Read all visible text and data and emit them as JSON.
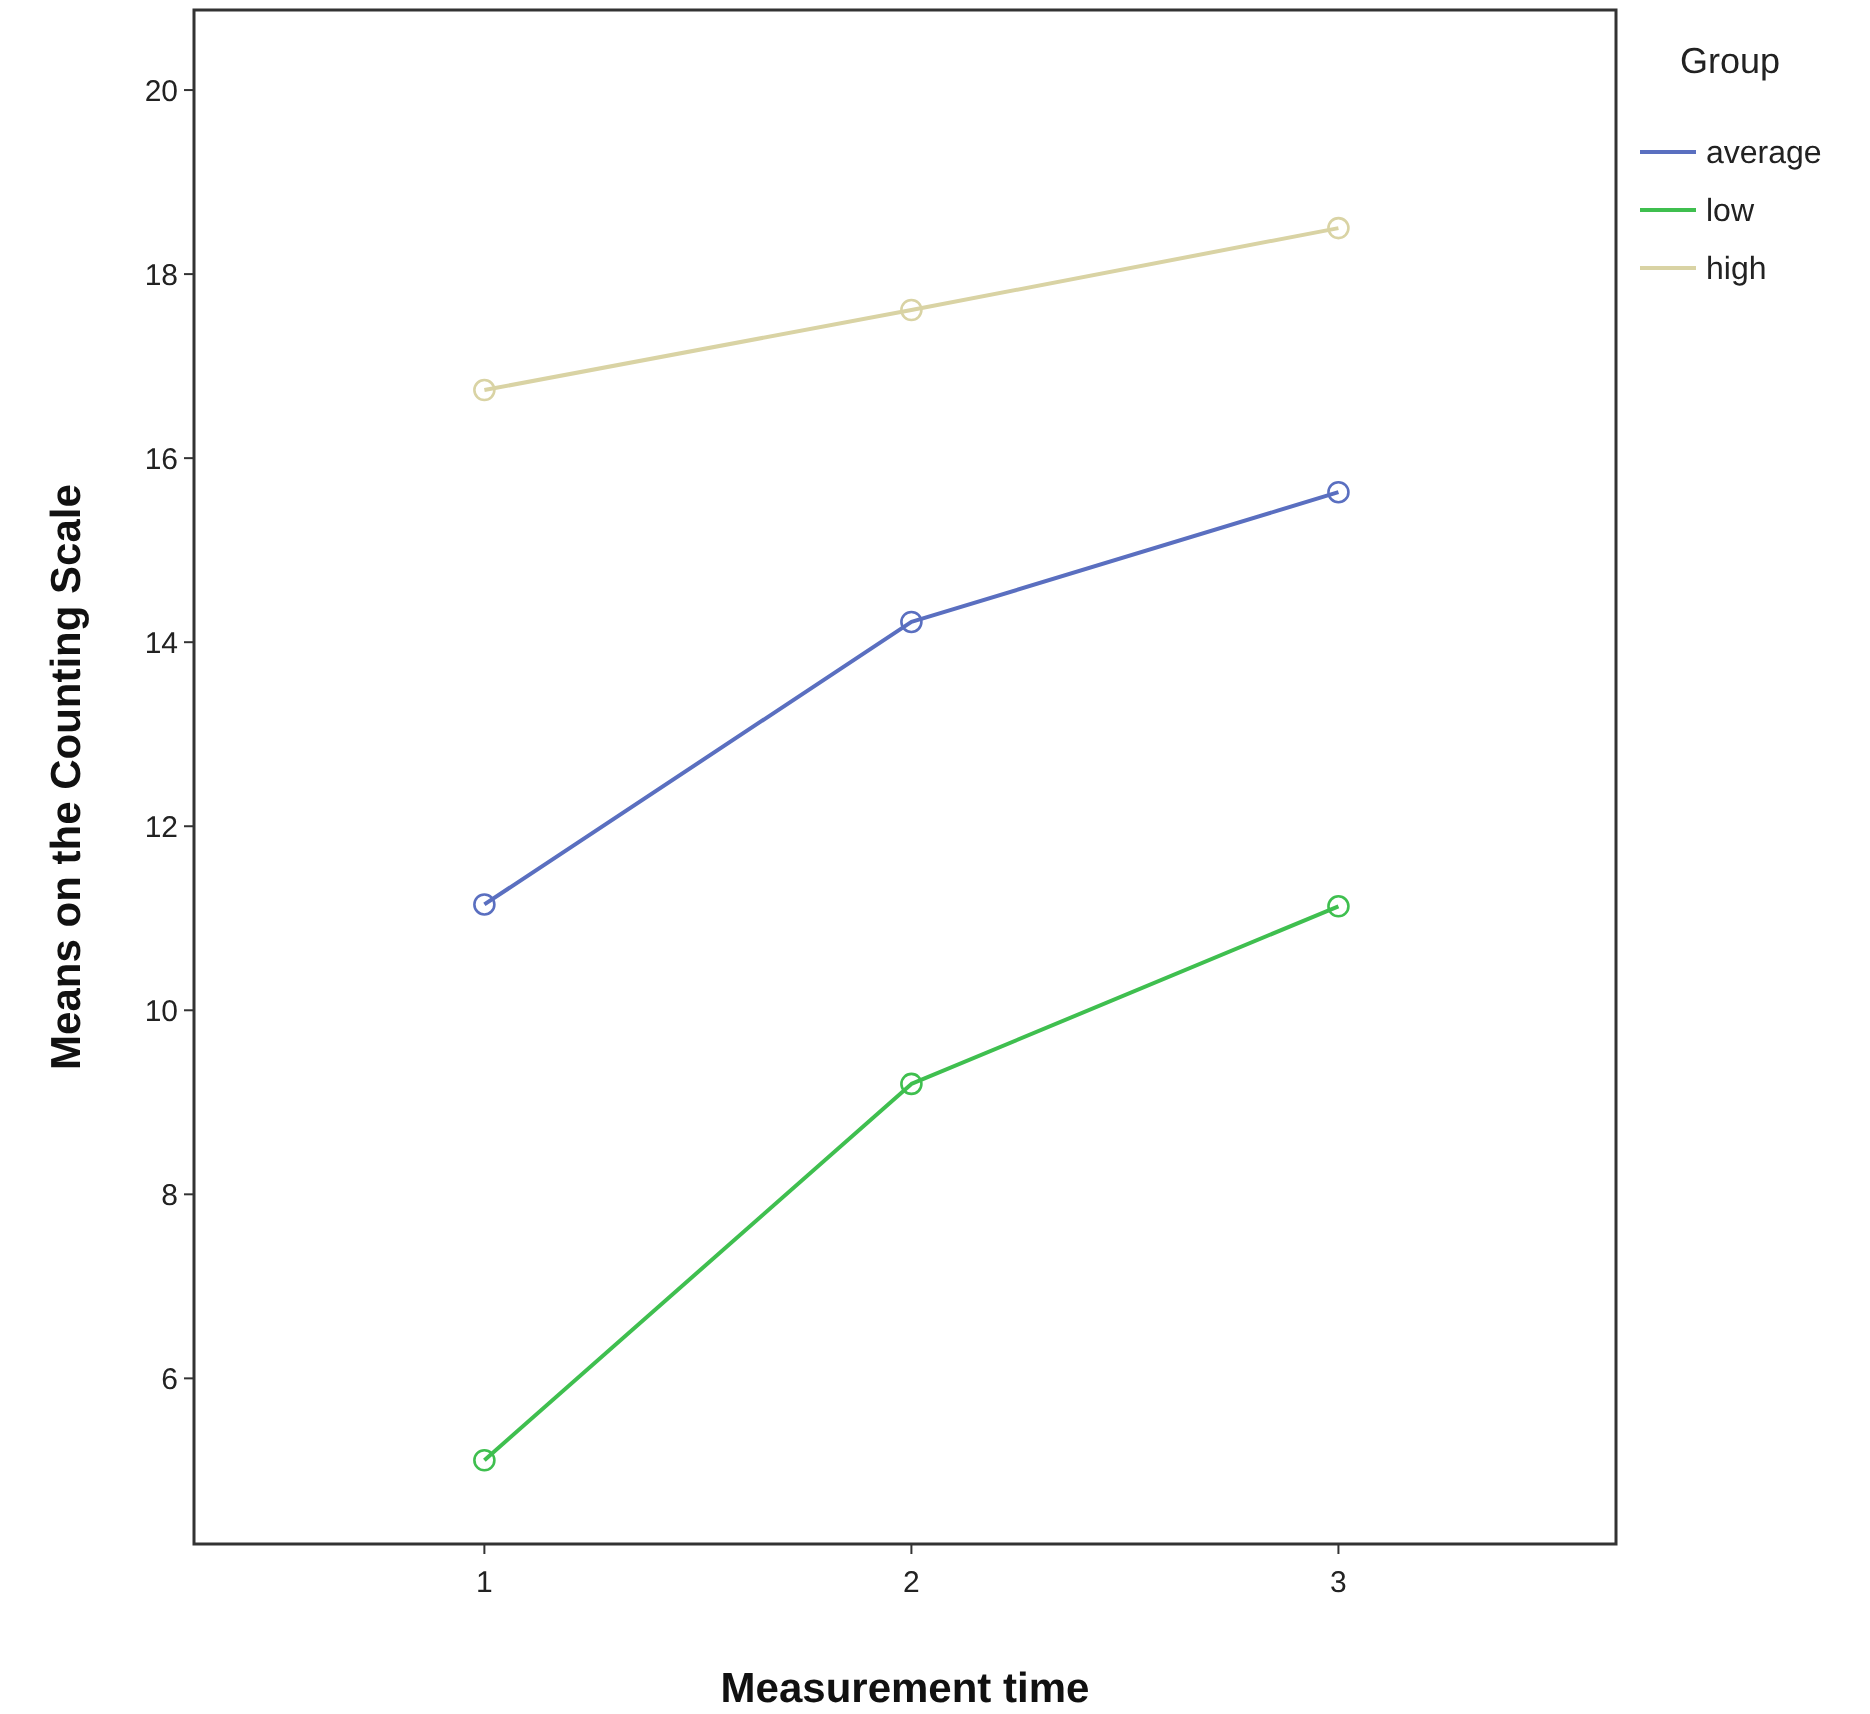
{
  "chart_data": {
    "type": "line",
    "xlabel": "Measurement time",
    "ylabel": "Means on the Counting Scale",
    "legend_title": "Group",
    "x": [
      1,
      2,
      3
    ],
    "xlim": [
      0.32,
      3.65
    ],
    "xticks": [
      1,
      2,
      3
    ],
    "ylim": [
      4.2,
      20.87
    ],
    "yticks": [
      6,
      8,
      10,
      12,
      14,
      16,
      18,
      20
    ],
    "grid": false,
    "legend": "right",
    "marker": "circle",
    "line_style": "solid",
    "series": [
      {
        "name": "average",
        "color": "#5a6fc0",
        "values": [
          11.15,
          14.22,
          15.63
        ]
      },
      {
        "name": "low",
        "color": "#3fbf4f",
        "values": [
          5.11,
          9.2,
          11.13
        ]
      },
      {
        "name": "high",
        "color": "#d9d3a4",
        "values": [
          16.74,
          17.61,
          18.5
        ]
      }
    ]
  }
}
